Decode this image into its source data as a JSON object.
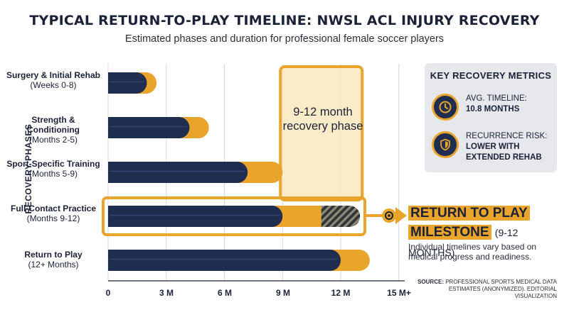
{
  "header": {
    "title": "TYPICAL RETURN-TO-PLAY TIMELINE: NWSL ACL INJURY RECOVERY",
    "subtitle": "Estimated phases and duration for professional female soccer players"
  },
  "chart_data": {
    "type": "bar",
    "orientation": "horizontal",
    "ylabel": "RECOVERY PHASES",
    "x_ticks": [
      "0",
      "3 M",
      "6 M",
      "9 M",
      "12 M",
      "15 M+"
    ],
    "xlim": [
      0,
      15
    ],
    "grid": true,
    "categories": [
      {
        "name": "Surgery & Initial Rehab",
        "range": "(Weeks 0-8)"
      },
      {
        "name": "Strength & Conditioning",
        "range": "(Months 2-5)"
      },
      {
        "name": "Sport-Specific Training",
        "range": "(Months 5-9)"
      },
      {
        "name": "Full-Contact Practice",
        "range": "(Months 9-12)"
      },
      {
        "name": "Return to Play",
        "range": "(12+ Months)"
      }
    ],
    "series": [
      {
        "values": [
          2.0,
          4.2,
          7.2,
          9.0,
          12.0
        ]
      },
      {
        "values": [
          0.5,
          1.0,
          1.8,
          2.0,
          1.5
        ]
      },
      {
        "values": [
          0,
          0,
          0,
          2.0,
          0
        ]
      }
    ],
    "highlight_band": {
      "x_range": [
        9,
        13
      ],
      "label": "9-12 month recovery phase"
    },
    "highlight_category": "Full-Contact Practice",
    "colors": {
      "navy": "#1f2d50",
      "gold": "#e8a42b",
      "band": "#fbe8bf",
      "band_border": "#e8a42b",
      "grid": "#d4d8de"
    }
  },
  "metrics": {
    "title": "KEY RECOVERY METRICS",
    "items": [
      {
        "icon": "clock-icon",
        "label": "AVG. TIMELINE:",
        "value": "10.8 MONTHS"
      },
      {
        "icon": "shield-icon",
        "label": "RECURRENCE RISK:",
        "value_lines": [
          "LOWER WITH",
          "EXTENDED REHAB"
        ]
      }
    ]
  },
  "milestone": {
    "line1": "RETURN TO PLAY",
    "line2": "MILESTONE",
    "range": "(9-12 MONTHS)",
    "note": "Individual timelines vary based on medical progress and readiness."
  },
  "source": {
    "label": "SOURCE:",
    "text": "PROFESSIONAL SPORTS MEDICAL DATA ESTIMATES (ANONYMIZED). EDITORIAL VISUALIZATION"
  }
}
